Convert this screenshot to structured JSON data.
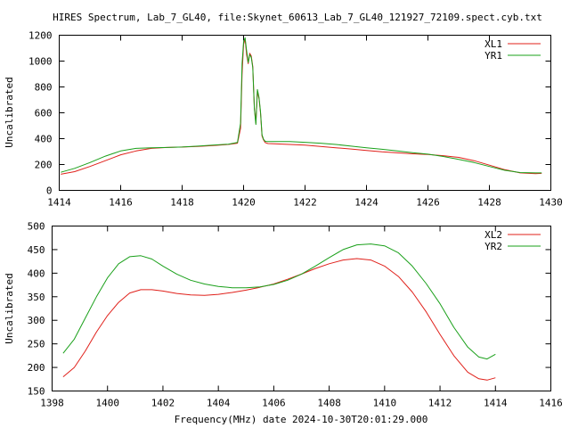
{
  "chart_data": [
    {
      "type": "line",
      "title": "HIRES Spectrum, Lab_7_GL40, file:Skynet_60613_Lab_7_GL40_121927_72109.spect.cyb.txt",
      "xlabel": "",
      "ylabel": "Uncalibrated",
      "xlim": [
        1414,
        1430
      ],
      "ylim": [
        0,
        1200
      ],
      "xticks": [
        1414,
        1416,
        1418,
        1420,
        1422,
        1424,
        1426,
        1428,
        1430
      ],
      "yticks": [
        0,
        200,
        400,
        600,
        800,
        1000,
        1200
      ],
      "grid": false,
      "legend": "top-right",
      "series": [
        {
          "name": "XL1",
          "color": "#e0201a",
          "x": [
            1414.05,
            1414.5,
            1415,
            1415.5,
            1416,
            1416.5,
            1417,
            1417.5,
            1418,
            1418.5,
            1419,
            1419.5,
            1419.8,
            1419.9,
            1419.95,
            1420.0,
            1420.05,
            1420.1,
            1420.15,
            1420.2,
            1420.25,
            1420.3,
            1420.35,
            1420.4,
            1420.45,
            1420.5,
            1420.55,
            1420.6,
            1420.65,
            1420.7,
            1420.75,
            1420.8,
            1421,
            1421.5,
            1422,
            1422.5,
            1423,
            1423.5,
            1424,
            1424.5,
            1425,
            1425.5,
            1426,
            1426.5,
            1427,
            1427.5,
            1428,
            1428.5,
            1429,
            1429.5,
            1429.7
          ],
          "y": [
            125,
            145,
            185,
            230,
            275,
            305,
            325,
            332,
            335,
            340,
            347,
            355,
            365,
            480,
            900,
            1130,
            1170,
            1050,
            980,
            1060,
            1040,
            960,
            640,
            520,
            770,
            710,
            600,
            420,
            390,
            370,
            365,
            362,
            360,
            355,
            350,
            340,
            330,
            320,
            308,
            298,
            290,
            283,
            277,
            268,
            255,
            230,
            195,
            160,
            135,
            130,
            132
          ]
        },
        {
          "name": "YR1",
          "color": "#1aa01a",
          "x": [
            1414.05,
            1414.5,
            1415,
            1415.5,
            1416,
            1416.5,
            1417,
            1417.5,
            1418,
            1418.5,
            1419,
            1419.5,
            1419.8,
            1419.9,
            1419.95,
            1420.0,
            1420.05,
            1420.1,
            1420.15,
            1420.2,
            1420.25,
            1420.3,
            1420.35,
            1420.4,
            1420.45,
            1420.5,
            1420.55,
            1420.6,
            1420.65,
            1420.7,
            1420.75,
            1420.8,
            1421,
            1421.5,
            1422,
            1422.5,
            1423,
            1423.5,
            1424,
            1424.5,
            1425,
            1425.5,
            1426,
            1426.5,
            1427,
            1427.5,
            1428,
            1428.5,
            1429,
            1429.5,
            1429.7
          ],
          "y": [
            140,
            170,
            215,
            265,
            305,
            325,
            330,
            332,
            335,
            342,
            350,
            357,
            370,
            520,
            980,
            1150,
            1180,
            1080,
            990,
            1050,
            1030,
            950,
            630,
            510,
            780,
            720,
            610,
            430,
            395,
            380,
            378,
            377,
            378,
            377,
            372,
            365,
            355,
            342,
            330,
            318,
            305,
            292,
            280,
            262,
            240,
            215,
            185,
            155,
            138,
            135,
            135
          ]
        }
      ]
    },
    {
      "type": "line",
      "title": "",
      "xlabel": "Frequency(MHz) date 2024-10-30T20:01:29.000",
      "ylabel": "Uncalibrated",
      "xlim": [
        1398,
        1416
      ],
      "ylim": [
        150,
        500
      ],
      "xticks": [
        1398,
        1400,
        1402,
        1404,
        1406,
        1408,
        1410,
        1412,
        1414,
        1416
      ],
      "yticks": [
        150,
        200,
        250,
        300,
        350,
        400,
        450,
        500
      ],
      "grid": false,
      "legend": "top-right",
      "series": [
        {
          "name": "XL2",
          "color": "#e0201a",
          "x": [
            1398.4,
            1398.8,
            1399.2,
            1399.6,
            1400.0,
            1400.4,
            1400.8,
            1401.2,
            1401.6,
            1402.0,
            1402.5,
            1403.0,
            1403.5,
            1404.0,
            1404.5,
            1405.0,
            1405.5,
            1406.0,
            1406.5,
            1407.0,
            1407.5,
            1408.0,
            1408.5,
            1409.0,
            1409.5,
            1410.0,
            1410.5,
            1411.0,
            1411.5,
            1412.0,
            1412.5,
            1413.0,
            1413.4,
            1413.7,
            1414.0
          ],
          "y": [
            180,
            200,
            235,
            275,
            310,
            338,
            358,
            365,
            365,
            362,
            357,
            354,
            353,
            355,
            359,
            364,
            370,
            377,
            387,
            398,
            410,
            420,
            428,
            431,
            428,
            415,
            393,
            360,
            318,
            270,
            225,
            190,
            176,
            173,
            178
          ]
        },
        {
          "name": "YR2",
          "color": "#1aa01a",
          "x": [
            1398.4,
            1398.8,
            1399.2,
            1399.6,
            1400.0,
            1400.4,
            1400.8,
            1401.2,
            1401.6,
            1402.0,
            1402.5,
            1403.0,
            1403.5,
            1404.0,
            1404.5,
            1405.0,
            1405.5,
            1406.0,
            1406.5,
            1407.0,
            1407.5,
            1408.0,
            1408.5,
            1409.0,
            1409.5,
            1410.0,
            1410.5,
            1411.0,
            1411.5,
            1412.0,
            1412.5,
            1413.0,
            1413.4,
            1413.7,
            1414.0
          ],
          "y": [
            230,
            260,
            305,
            350,
            390,
            420,
            435,
            437,
            430,
            415,
            398,
            385,
            377,
            372,
            369,
            369,
            371,
            376,
            385,
            398,
            415,
            433,
            450,
            460,
            462,
            458,
            443,
            415,
            378,
            335,
            285,
            243,
            222,
            218,
            228
          ]
        }
      ]
    }
  ]
}
